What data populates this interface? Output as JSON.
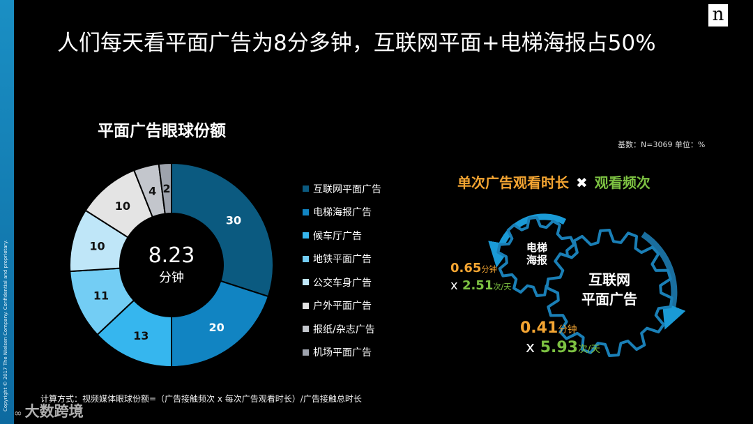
{
  "title": "人们每天看平面广告为8分多钟，互联网平面+电梯海报占50%",
  "logo": "n",
  "copyright": "Copyright © 2017 The Nielsen Company. Confidential and proprietary.",
  "base_note": "基数：N=3069   单位：%",
  "center_value": "8.23",
  "center_unit": "分钟",
  "chart_data": {
    "type": "pie",
    "title": "平面广告眼球份额",
    "donut": true,
    "start": "12 o'clock, clockwise",
    "legend_position": "right",
    "categories": [
      "互联网平面广告",
      "电梯海报广告",
      "候车厅广告",
      "地铁平面广告",
      "公交车身广告",
      "户外平面广告",
      "报纸/杂志广告",
      "机场平面广告"
    ],
    "values": [
      30,
      20,
      13,
      11,
      10,
      10,
      4,
      2
    ],
    "colors": [
      "#0b5a80",
      "#1184c2",
      "#36b6ee",
      "#73cdf4",
      "#bfe6f8",
      "#e4e4e4",
      "#c3c6cc",
      "#9ea3ad"
    ],
    "label_colors": [
      "#ffffff",
      "#ffffff",
      "#111111",
      "#111111",
      "#111111",
      "#111111",
      "#111111",
      "#111111"
    ]
  },
  "formula": {
    "factor_a": "单次广告观看时长",
    "operator": "✖",
    "factor_b": "观看频次"
  },
  "gears": {
    "small_label_line1": "电梯",
    "small_label_line2": "海报",
    "large_label_line1": "互联网",
    "large_label_line2": "平面广告"
  },
  "stats": {
    "elevator_duration": "0.65",
    "elevator_duration_unit": "分钟",
    "elevator_times": "x",
    "elevator_frequency": "2.51",
    "elevator_frequency_unit": "次/天",
    "internet_duration": "0.41",
    "internet_duration_unit": "分钟",
    "internet_times": "x",
    "internet_frequency": "5.93",
    "internet_frequency_unit": "次/天"
  },
  "footnote": "计算方式：视频媒体眼球份额=（广告接触频次 x 每次广告观看时长）/广告接触总时长",
  "watermark": "大数跨境",
  "watermark_icon": "∞"
}
